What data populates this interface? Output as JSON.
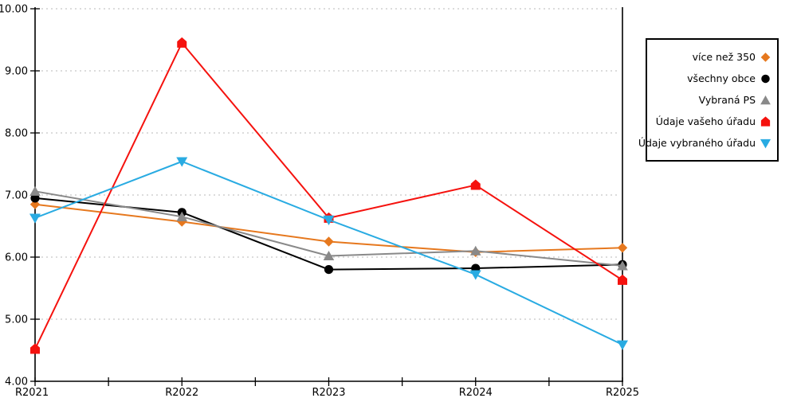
{
  "chart_data": {
    "type": "line",
    "title": "",
    "xlabel": "",
    "ylabel": "",
    "categories": [
      "R2021",
      "R2022",
      "R2023",
      "R2024",
      "R2025"
    ],
    "y_axis": {
      "min": 4,
      "max": 10,
      "tick_step": 1,
      "tick_labels": [
        "4.00",
        "5.00",
        "6.00",
        "7.00",
        "8.00",
        "9.00",
        "10.00"
      ]
    },
    "grid": "horizontal-dashed",
    "legend_position": "right",
    "series": [
      {
        "name": "více než 350",
        "color": "#E6781E",
        "marker": "diamond",
        "values": [
          6.85,
          6.57,
          6.25,
          6.08,
          6.15
        ]
      },
      {
        "name": "všechny obce",
        "color": "#000000",
        "marker": "circle",
        "values": [
          6.95,
          6.72,
          5.8,
          5.82,
          5.88
        ]
      },
      {
        "name": "Vybraná PS",
        "color": "#898989",
        "marker": "triangle-up",
        "values": [
          7.06,
          6.65,
          6.02,
          6.1,
          5.86
        ]
      },
      {
        "name": "Údaje vašeho úřadu",
        "color": "#F5120E",
        "marker": "pentagon",
        "values": [
          4.52,
          9.45,
          6.63,
          7.16,
          5.63
        ]
      },
      {
        "name": "Údaje vybraného úřadu",
        "color": "#29ABE2",
        "marker": "triangle-down",
        "values": [
          6.63,
          7.54,
          6.6,
          5.72,
          4.59
        ]
      }
    ],
    "colors": {
      "grid": "#C8C8C8",
      "axis": "#000000",
      "background": "#FFFFFF"
    }
  }
}
